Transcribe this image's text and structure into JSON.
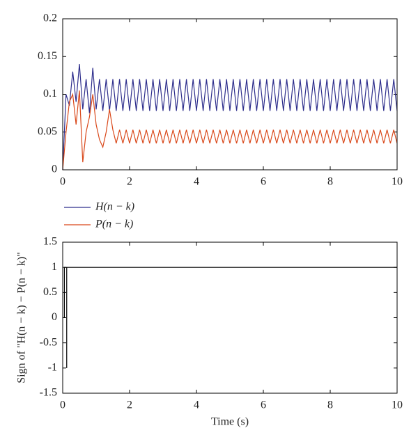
{
  "chart_data": [
    {
      "type": "line",
      "x": [
        0,
        0.1,
        0.2,
        0.3,
        0.4,
        0.5,
        0.6,
        0.7,
        0.8,
        0.9,
        1,
        1.1,
        1.2,
        1.3,
        1.4,
        1.5,
        1.6,
        1.7,
        1.8,
        1.9,
        2,
        2.1,
        2.2,
        2.3,
        2.4,
        2.5,
        2.6,
        2.7,
        2.8,
        2.9,
        3,
        3.1,
        3.2,
        3.3,
        3.4,
        3.5,
        3.6,
        3.7,
        3.8,
        3.9,
        4,
        4.1,
        4.2,
        4.3,
        4.4,
        4.5,
        4.6,
        4.7,
        4.8,
        4.9,
        5,
        5.1,
        5.2,
        5.3,
        5.4,
        5.5,
        5.6,
        5.7,
        5.8,
        5.9,
        6,
        6.1,
        6.2,
        6.3,
        6.4,
        6.5,
        6.6,
        6.7,
        6.8,
        6.9,
        7,
        7.1,
        7.2,
        7.3,
        7.4,
        7.5,
        7.6,
        7.7,
        7.8,
        7.9,
        8,
        8.1,
        8.2,
        8.3,
        8.4,
        8.5,
        8.6,
        8.7,
        8.8,
        8.9,
        9,
        9.1,
        9.2,
        9.3,
        9.4,
        9.5,
        9.6,
        9.7,
        9.8,
        9.9,
        10
      ],
      "series": [
        {
          "name": "H(n − k)",
          "color": "#2e2e8c",
          "values": [
            0,
            0.1,
            0.085,
            0.13,
            0.09,
            0.14,
            0.08,
            0.12,
            0.075,
            0.135,
            0.08,
            0.12,
            0.078,
            0.12,
            0.078,
            0.12,
            0.078,
            0.12,
            0.078,
            0.12,
            0.078,
            0.12,
            0.078,
            0.12,
            0.078,
            0.12,
            0.078,
            0.12,
            0.078,
            0.12,
            0.078,
            0.12,
            0.078,
            0.12,
            0.078,
            0.12,
            0.078,
            0.12,
            0.078,
            0.12,
            0.078,
            0.12,
            0.078,
            0.12,
            0.078,
            0.12,
            0.078,
            0.12,
            0.078,
            0.12,
            0.078,
            0.12,
            0.078,
            0.12,
            0.078,
            0.12,
            0.078,
            0.12,
            0.078,
            0.12,
            0.078,
            0.12,
            0.078,
            0.12,
            0.078,
            0.12,
            0.078,
            0.12,
            0.078,
            0.12,
            0.078,
            0.12,
            0.078,
            0.12,
            0.078,
            0.12,
            0.078,
            0.12,
            0.078,
            0.12,
            0.078,
            0.12,
            0.078,
            0.12,
            0.078,
            0.12,
            0.078,
            0.12,
            0.078,
            0.12,
            0.078,
            0.12,
            0.078,
            0.12,
            0.078,
            0.12,
            0.078,
            0.12,
            0.078,
            0.12,
            0.078
          ]
        },
        {
          "name": "P(n − k)",
          "color": "#d9481a",
          "values": [
            0,
            0.05,
            0.09,
            0.1,
            0.06,
            0.105,
            0.01,
            0.05,
            0.07,
            0.1,
            0.06,
            0.04,
            0.03,
            0.05,
            0.08,
            0.053,
            0.035,
            0.053,
            0.035,
            0.053,
            0.035,
            0.053,
            0.035,
            0.053,
            0.035,
            0.053,
            0.035,
            0.053,
            0.035,
            0.053,
            0.035,
            0.053,
            0.035,
            0.053,
            0.035,
            0.053,
            0.035,
            0.053,
            0.035,
            0.053,
            0.035,
            0.053,
            0.035,
            0.053,
            0.035,
            0.053,
            0.035,
            0.053,
            0.035,
            0.053,
            0.035,
            0.053,
            0.035,
            0.053,
            0.035,
            0.053,
            0.035,
            0.053,
            0.035,
            0.053,
            0.035,
            0.053,
            0.035,
            0.053,
            0.035,
            0.053,
            0.035,
            0.053,
            0.035,
            0.053,
            0.035,
            0.053,
            0.035,
            0.053,
            0.035,
            0.053,
            0.035,
            0.053,
            0.035,
            0.053,
            0.035,
            0.053,
            0.035,
            0.053,
            0.035,
            0.053,
            0.035,
            0.053,
            0.035,
            0.053,
            0.035,
            0.053,
            0.035,
            0.053,
            0.035,
            0.053,
            0.035,
            0.053,
            0.035,
            0.053,
            0.035
          ]
        }
      ],
      "xlim": [
        0,
        10
      ],
      "xticks": [
        0,
        2,
        4,
        6,
        8,
        10
      ],
      "ylim": [
        0,
        0.2
      ],
      "yticks": [
        0,
        0.05,
        0.1,
        0.15,
        0.2
      ]
    },
    {
      "type": "line",
      "x": [
        0.05,
        0.05,
        0.12,
        0.12,
        0.12,
        10
      ],
      "series": [
        {
          "color": "#000000",
          "values": [
            0,
            1,
            1,
            -1,
            1,
            1
          ]
        }
      ],
      "xlim": [
        0,
        10
      ],
      "xticks": [
        0,
        2,
        4,
        6,
        8,
        10
      ],
      "ylim": [
        -1.5,
        1.5
      ],
      "yticks": [
        -1.5,
        -1,
        -0.5,
        0,
        0.5,
        1,
        1.5
      ],
      "ylabel": "Sign of \"H(n − k) − P(n − k)\"",
      "xlabel": "Time (s)"
    }
  ]
}
